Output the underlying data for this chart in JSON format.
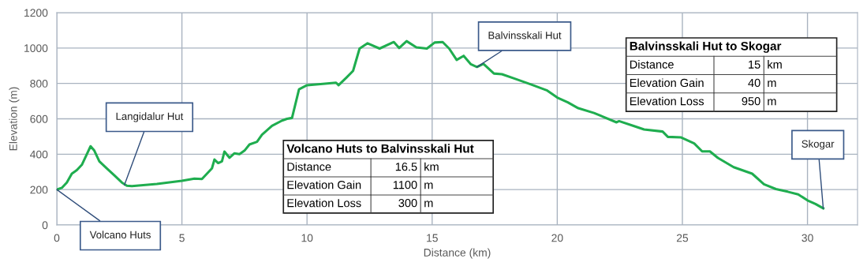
{
  "chart_data": {
    "type": "line",
    "xlabel": "Distance (km)",
    "ylabel": "Elevation (m)",
    "xlim": [
      0,
      32
    ],
    "xticks": [
      0,
      5,
      10,
      15,
      20,
      25,
      30
    ],
    "ylim": [
      0,
      1200
    ],
    "yticks": [
      0,
      200,
      400,
      600,
      800,
      1000,
      1200
    ],
    "grid": true,
    "marker": "none",
    "line_style": "solid",
    "series": [
      {
        "color": "#1fad4f",
        "x": [
          0,
          0.2,
          0.4,
          0.6,
          0.8,
          1.0,
          1.2,
          1.35,
          1.5,
          1.7,
          2.0,
          2.3,
          2.6,
          2.8,
          3.0,
          4.0,
          5.0,
          5.5,
          5.8,
          6.0,
          6.2,
          6.3,
          6.45,
          6.6,
          6.7,
          6.9,
          7.1,
          7.3,
          7.5,
          7.7,
          8.0,
          8.2,
          8.6,
          9.0,
          9.2,
          9.4,
          9.68,
          10.0,
          10.63,
          11.16,
          11.26,
          11.58,
          11.84,
          12.1,
          12.42,
          12.9,
          13.47,
          13.68,
          13.98,
          14.37,
          14.79,
          15.1,
          15.42,
          15.68,
          15.98,
          16.26,
          16.55,
          16.79,
          17.05,
          17.47,
          17.79,
          18.3,
          18.9,
          19.6,
          20.0,
          20.42,
          20.84,
          21.47,
          22.37,
          22.47,
          23.05,
          23.47,
          24.21,
          24.42,
          24.95,
          25.47,
          25.79,
          26.1,
          26.42,
          27.05,
          27.79,
          28.26,
          28.74,
          29.21,
          29.63,
          30.0,
          30.32,
          30.63
        ],
        "values": [
          200,
          210,
          240,
          290,
          310,
          340,
          400,
          445,
          420,
          360,
          320,
          280,
          240,
          222,
          220,
          232,
          250,
          262,
          260,
          290,
          320,
          370,
          350,
          360,
          415,
          380,
          405,
          400,
          420,
          455,
          470,
          510,
          560,
          590,
          600,
          605,
          767,
          790,
          797,
          804,
          790,
          834,
          871,
          997,
          1027,
          997,
          1034,
          1000,
          1039,
          1004,
          997,
          1031,
          1034,
          997,
          933,
          956,
          908,
          893,
          911,
          856,
          852,
          827,
          797,
          760,
          720,
          693,
          660,
          633,
          580,
          587,
          560,
          540,
          528,
          498,
          495,
          461,
          416,
          416,
          379,
          327,
          290,
          230,
          203,
          188,
          173,
          139,
          119,
          94
        ]
      }
    ],
    "annotations": [
      {
        "text": "Volcano Huts",
        "x": 0,
        "y": 200
      },
      {
        "text": "Langidalur Hut",
        "x": 2.7,
        "y": 225
      },
      {
        "text": "Balvinsskali Hut",
        "x": 16.79,
        "y": 893
      },
      {
        "text": "Skogar",
        "x": 30.63,
        "y": 94
      },
      "Volcano Huts to Balvinsskali Hut",
      "Distance",
      "16.5",
      "km",
      "Elevation Gain",
      "1100",
      "m",
      "Elevation Loss",
      "300",
      "m",
      "Balvinsskali Hut to Skogar",
      "Distance",
      "15",
      "km",
      "Elevation Gain",
      "40",
      "m",
      "Elevation Loss",
      "950",
      "m"
    ]
  }
}
